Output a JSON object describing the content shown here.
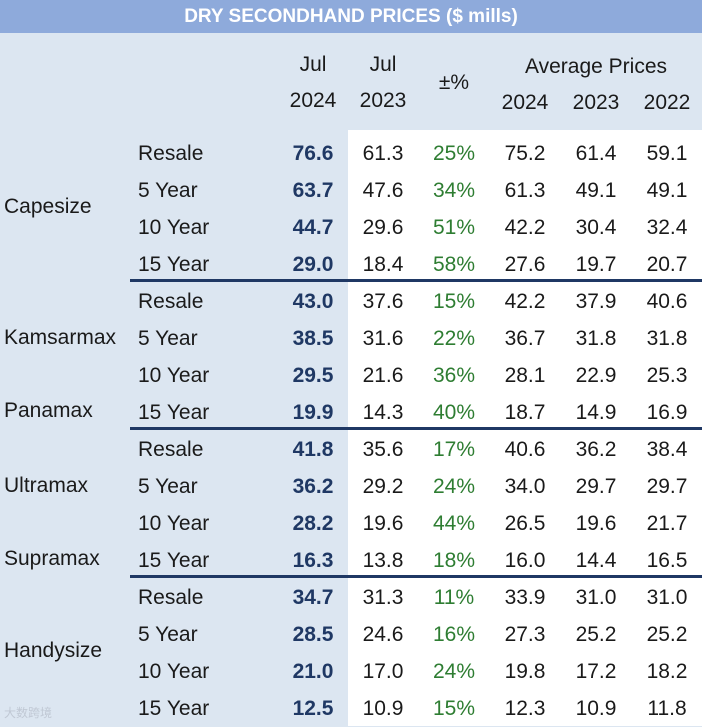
{
  "title": "DRY SECONDHAND PRICES ($ mills)",
  "headers": {
    "jul24_top": "Jul",
    "jul24_bottom": "2024",
    "jul23_top": "Jul",
    "jul23_bottom": "2023",
    "change": "±%",
    "avg": "Average Prices",
    "y2024": "2024",
    "y2023": "2023",
    "y2022": "2022"
  },
  "groups": [
    "Capesize",
    "Kamsarmax",
    "Panamax",
    "Ultramax",
    "Supramax",
    "Handysize"
  ],
  "rows": [
    {
      "age": "Resale",
      "jul24": "76.6",
      "jul23": "61.3",
      "chg": "25%",
      "a24": "75.2",
      "a23": "61.4",
      "a22": "59.1"
    },
    {
      "age": "5 Year",
      "jul24": "63.7",
      "jul23": "47.6",
      "chg": "34%",
      "a24": "61.3",
      "a23": "49.1",
      "a22": "49.1"
    },
    {
      "age": "10 Year",
      "jul24": "44.7",
      "jul23": "29.6",
      "chg": "51%",
      "a24": "42.2",
      "a23": "30.4",
      "a22": "32.4"
    },
    {
      "age": "15 Year",
      "jul24": "29.0",
      "jul23": "18.4",
      "chg": "58%",
      "a24": "27.6",
      "a23": "19.7",
      "a22": "20.7"
    },
    {
      "age": "Resale",
      "jul24": "43.0",
      "jul23": "37.6",
      "chg": "15%",
      "a24": "42.2",
      "a23": "37.9",
      "a22": "40.6"
    },
    {
      "age": "5 Year",
      "jul24": "38.5",
      "jul23": "31.6",
      "chg": "22%",
      "a24": "36.7",
      "a23": "31.8",
      "a22": "31.8"
    },
    {
      "age": "10 Year",
      "jul24": "29.5",
      "jul23": "21.6",
      "chg": "36%",
      "a24": "28.1",
      "a23": "22.9",
      "a22": "25.3"
    },
    {
      "age": "15 Year",
      "jul24": "19.9",
      "jul23": "14.3",
      "chg": "40%",
      "a24": "18.7",
      "a23": "14.9",
      "a22": "16.9"
    },
    {
      "age": "Resale",
      "jul24": "41.8",
      "jul23": "35.6",
      "chg": "17%",
      "a24": "40.6",
      "a23": "36.2",
      "a22": "38.4"
    },
    {
      "age": "5 Year",
      "jul24": "36.2",
      "jul23": "29.2",
      "chg": "24%",
      "a24": "34.0",
      "a23": "29.7",
      "a22": "29.7"
    },
    {
      "age": "10 Year",
      "jul24": "28.2",
      "jul23": "19.6",
      "chg": "44%",
      "a24": "26.5",
      "a23": "19.6",
      "a22": "21.7"
    },
    {
      "age": "15 Year",
      "jul24": "16.3",
      "jul23": "13.8",
      "chg": "18%",
      "a24": "16.0",
      "a23": "14.4",
      "a22": "16.5"
    },
    {
      "age": "Resale",
      "jul24": "34.7",
      "jul23": "31.3",
      "chg": "11%",
      "a24": "33.9",
      "a23": "31.0",
      "a22": "31.0"
    },
    {
      "age": "5 Year",
      "jul24": "28.5",
      "jul23": "24.6",
      "chg": "16%",
      "a24": "27.3",
      "a23": "25.2",
      "a22": "25.2"
    },
    {
      "age": "10 Year",
      "jul24": "21.0",
      "jul23": "17.0",
      "chg": "24%",
      "a24": "19.8",
      "a23": "17.2",
      "a22": "18.2"
    },
    {
      "age": "15 Year",
      "jul24": "12.5",
      "jul23": "10.9",
      "chg": "15%",
      "a24": "12.3",
      "a23": "10.9",
      "a22": "11.8"
    }
  ],
  "watermark": "大数跨境"
}
